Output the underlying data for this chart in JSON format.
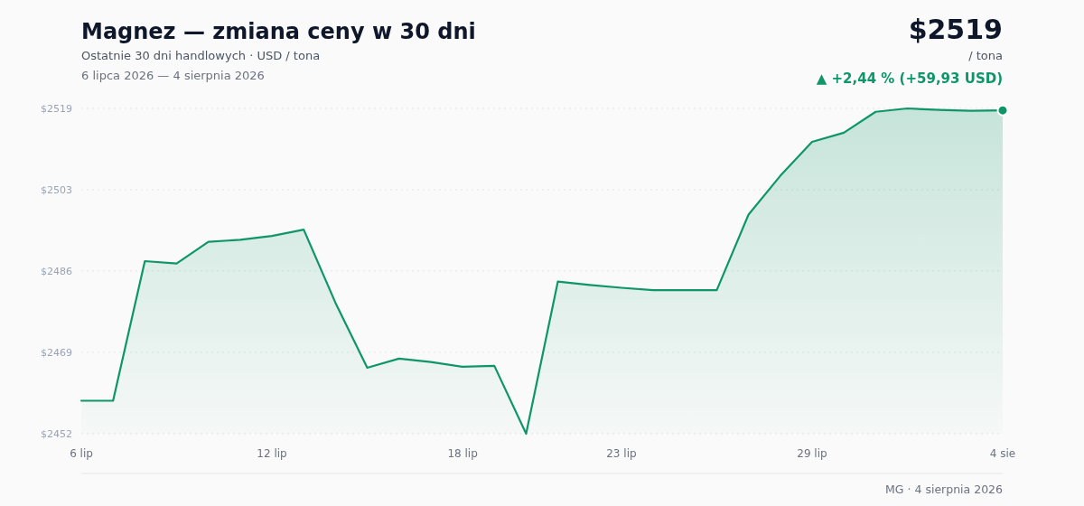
{
  "chart_data": {
    "type": "area",
    "title": "Magnez — zmiana ceny w 30 dni",
    "subtitle": "Ostatnie 30 dni handlowych · USD / tona",
    "annotations": [
      "6 lipca 2026 — 4 sierpnia 2026",
      "$2519",
      "/ tona",
      "▲ +2,44 % (+59,93 USD)",
      "MG · 4 sierpnia 2026"
    ],
    "x": [
      "2026-07-06",
      "2026-07-07",
      "2026-07-08",
      "2026-07-09",
      "2026-07-10",
      "2026-07-11",
      "2026-07-12",
      "2026-07-13",
      "2026-07-14",
      "2026-07-15",
      "2026-07-16",
      "2026-07-17",
      "2026-07-18",
      "2026-07-19",
      "2026-07-20",
      "2026-07-21",
      "2026-07-22",
      "2026-07-23",
      "2026-07-24",
      "2026-07-25",
      "2026-07-26",
      "2026-07-27",
      "2026-07-28",
      "2026-07-29",
      "2026-07-30",
      "2026-07-31",
      "2026-08-01",
      "2026-08-02",
      "2026-08-03",
      "2026-08-04"
    ],
    "series": [
      {
        "color": "#0f9668",
        "values": [
          2459.1,
          2459.1,
          2487.9,
          2487.4,
          2491.9,
          2492.3,
          2493.1,
          2494.4,
          2479.3,
          2465.9,
          2467.8,
          2467.1,
          2466.1,
          2466.3,
          2452.3,
          2483.7,
          2483.0,
          2482.4,
          2481.9,
          2481.9,
          2481.9,
          2497.5,
          2505.5,
          2512.5,
          2514.4,
          2518.7,
          2519.4,
          2519.1,
          2518.9,
          2519.0
        ]
      },
      {
        "type": "scatter",
        "color": "#0f9668",
        "marker": "circle",
        "x": [
          "2026-08-04"
        ],
        "values": [
          2519.0
        ]
      }
    ],
    "xlim": [
      "2026-07-06",
      "2026-08-04"
    ],
    "xticks": [
      {
        "value": "2026-07-06",
        "label": "6 lip"
      },
      {
        "value": "2026-07-12",
        "label": "12 lip"
      },
      {
        "value": "2026-07-18",
        "label": "18 lip"
      },
      {
        "value": "2026-07-23",
        "label": "23 lip"
      },
      {
        "value": "2026-07-29",
        "label": "29 lip"
      },
      {
        "value": "2026-08-04",
        "label": "4 sie"
      }
    ],
    "ylim": [
      2452.3,
      2519.4
    ],
    "yticks": [
      {
        "value": 2452.3,
        "label": "$2452"
      },
      {
        "value": 2469.1,
        "label": "$2469"
      },
      {
        "value": 2485.9,
        "label": "$2486"
      },
      {
        "value": 2502.6,
        "label": "$2503"
      },
      {
        "value": 2519.4,
        "label": "$2519"
      }
    ],
    "grid": "y"
  }
}
